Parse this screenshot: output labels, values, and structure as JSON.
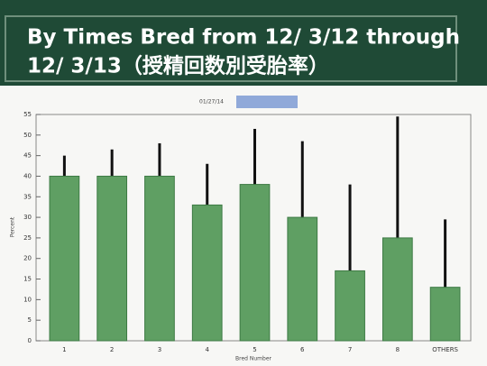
{
  "chart_data": {
    "type": "bar",
    "title_lines": [
      "By Times Bred from 12/ 3/12 through",
      "12/ 3/13（授精回数別受胎率）"
    ],
    "x_label": "Bred Number",
    "y_label": "Percent",
    "categories": [
      "1",
      "2",
      "3",
      "4",
      "5",
      "6",
      "7",
      "8",
      "OTHERS"
    ],
    "series": [
      {
        "name": "01/27/14",
        "color": "#5f9f63",
        "legend_color": "#90a9d9",
        "values": [
          40,
          40,
          40,
          33,
          38,
          30,
          17,
          25,
          13
        ],
        "errors": [
          5,
          6.5,
          8,
          10,
          13.5,
          18.5,
          21,
          29.5,
          16.5
        ]
      }
    ],
    "ylim": [
      0,
      55
    ],
    "yticks": [
      0,
      5,
      10,
      15,
      20,
      25,
      30,
      35,
      40,
      45,
      50,
      55
    ],
    "grid": false
  }
}
